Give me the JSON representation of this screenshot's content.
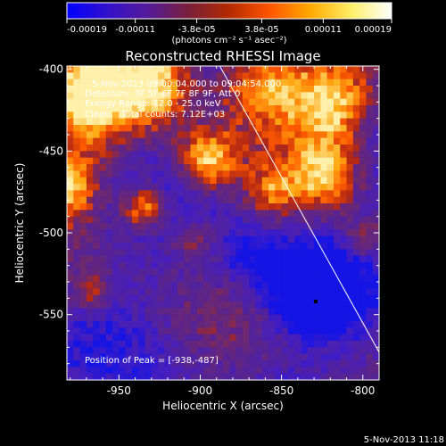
{
  "chart_data": {
    "type": "heatmap",
    "title": "Reconstructed RHESSI Image",
    "xlabel": "Heliocentric X (arcsec)",
    "ylabel": "Heliocentric Y (arcsec)",
    "xlim": [
      -982,
      -790
    ],
    "ylim": [
      -590,
      -398
    ],
    "x_ticks": [
      -950,
      -900,
      -850,
      -800
    ],
    "x_tick_labels": [
      "-950",
      "-900",
      "-850",
      "-800"
    ],
    "y_ticks": [
      -550,
      -500,
      -450,
      -400
    ],
    "y_tick_labels": [
      "-550",
      "-500",
      "-450",
      "-400"
    ],
    "colorbar": {
      "range": [
        -0.00019,
        0.00019
      ],
      "ticks": [
        -0.00019,
        -0.00011,
        -3.8e-05,
        3.8e-05,
        0.00011,
        0.00019
      ],
      "tick_labels": [
        "-0.00019",
        "-0.00011",
        "-3.8e-05",
        "3.8e-05",
        "0.00011",
        "0.00019"
      ],
      "unit_label": "(photons cm⁻² s⁻¹ asec⁻²)",
      "colors": [
        "#0000ff",
        "#3311cc",
        "#551a99",
        "#7a1f3a",
        "#b32a00",
        "#ff5500",
        "#ffaa00",
        "#ffee66",
        "#ffffff"
      ]
    },
    "info_lines": [
      "5-Nov-2013 09:00:04.000 to 09:04:54.000",
      "Detectors: 3F 5F 6F 7F 8F 9F, Att 0",
      "Energy Range: 12.0 - 25.0 keV",
      "Clean    Total counts: 7.12E+03"
    ],
    "peak_label": "Position of Peak = [-938,-487]",
    "limb_line": [
      [
        -888,
        -398
      ],
      [
        -790,
        -573
      ]
    ]
  },
  "footer_timestamp": "5-Nov-2013 11:18"
}
